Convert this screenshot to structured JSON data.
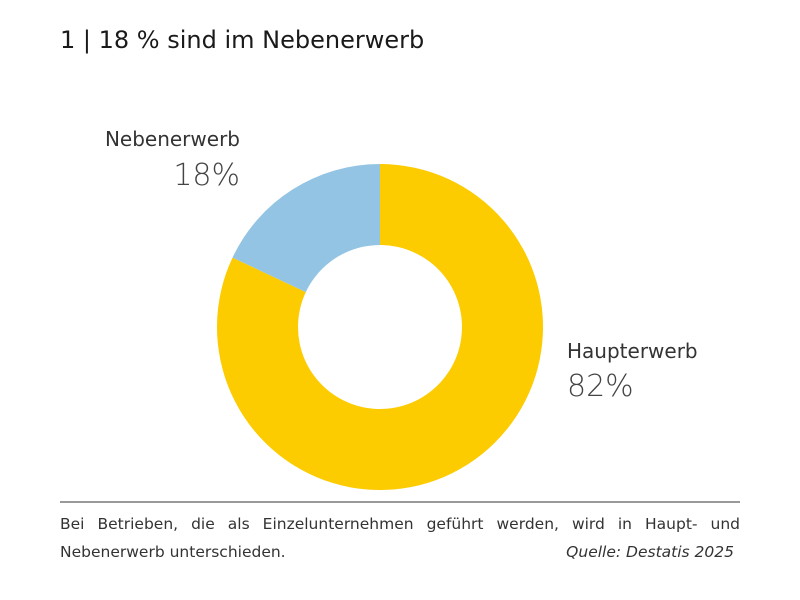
{
  "chart_data": {
    "type": "donut",
    "title": "1 | 18 % sind im Nebenerwerb",
    "categories": [
      "Haupterwerb",
      "Nebenerwerb"
    ],
    "values": [
      82,
      18
    ],
    "value_labels": [
      "82%",
      "18%"
    ],
    "colors": [
      "#fccb00",
      "#93c4e4"
    ]
  },
  "footnote": "Bei Betrieben, die als Einzelunternehmen geführt werden, wird in Haupt- und Nebenerwerb unterschieden.",
  "source": "Quelle: Destatis 2025"
}
